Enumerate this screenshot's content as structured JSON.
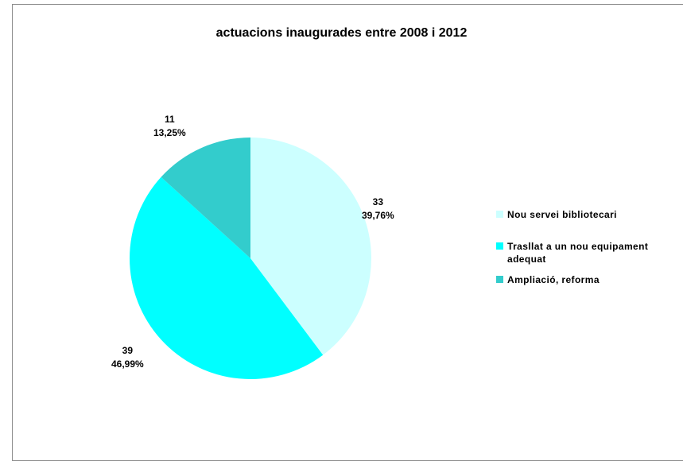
{
  "chart_data": {
    "type": "pie",
    "title": "actuacions inaugurades entre 2008 i 2012",
    "slices": [
      {
        "name": "Nou servei bibliotecari",
        "value": 33,
        "percent": "39,76%",
        "color": "#ccffff"
      },
      {
        "name": "Trasllat a un nou equipament adequat",
        "value": 39,
        "percent": "46,99%",
        "color": "#00ffff"
      },
      {
        "name": "Ampliació, reforma",
        "value": 11,
        "percent": "13,25%",
        "color": "#33cccc"
      }
    ],
    "legend_position": "right"
  }
}
